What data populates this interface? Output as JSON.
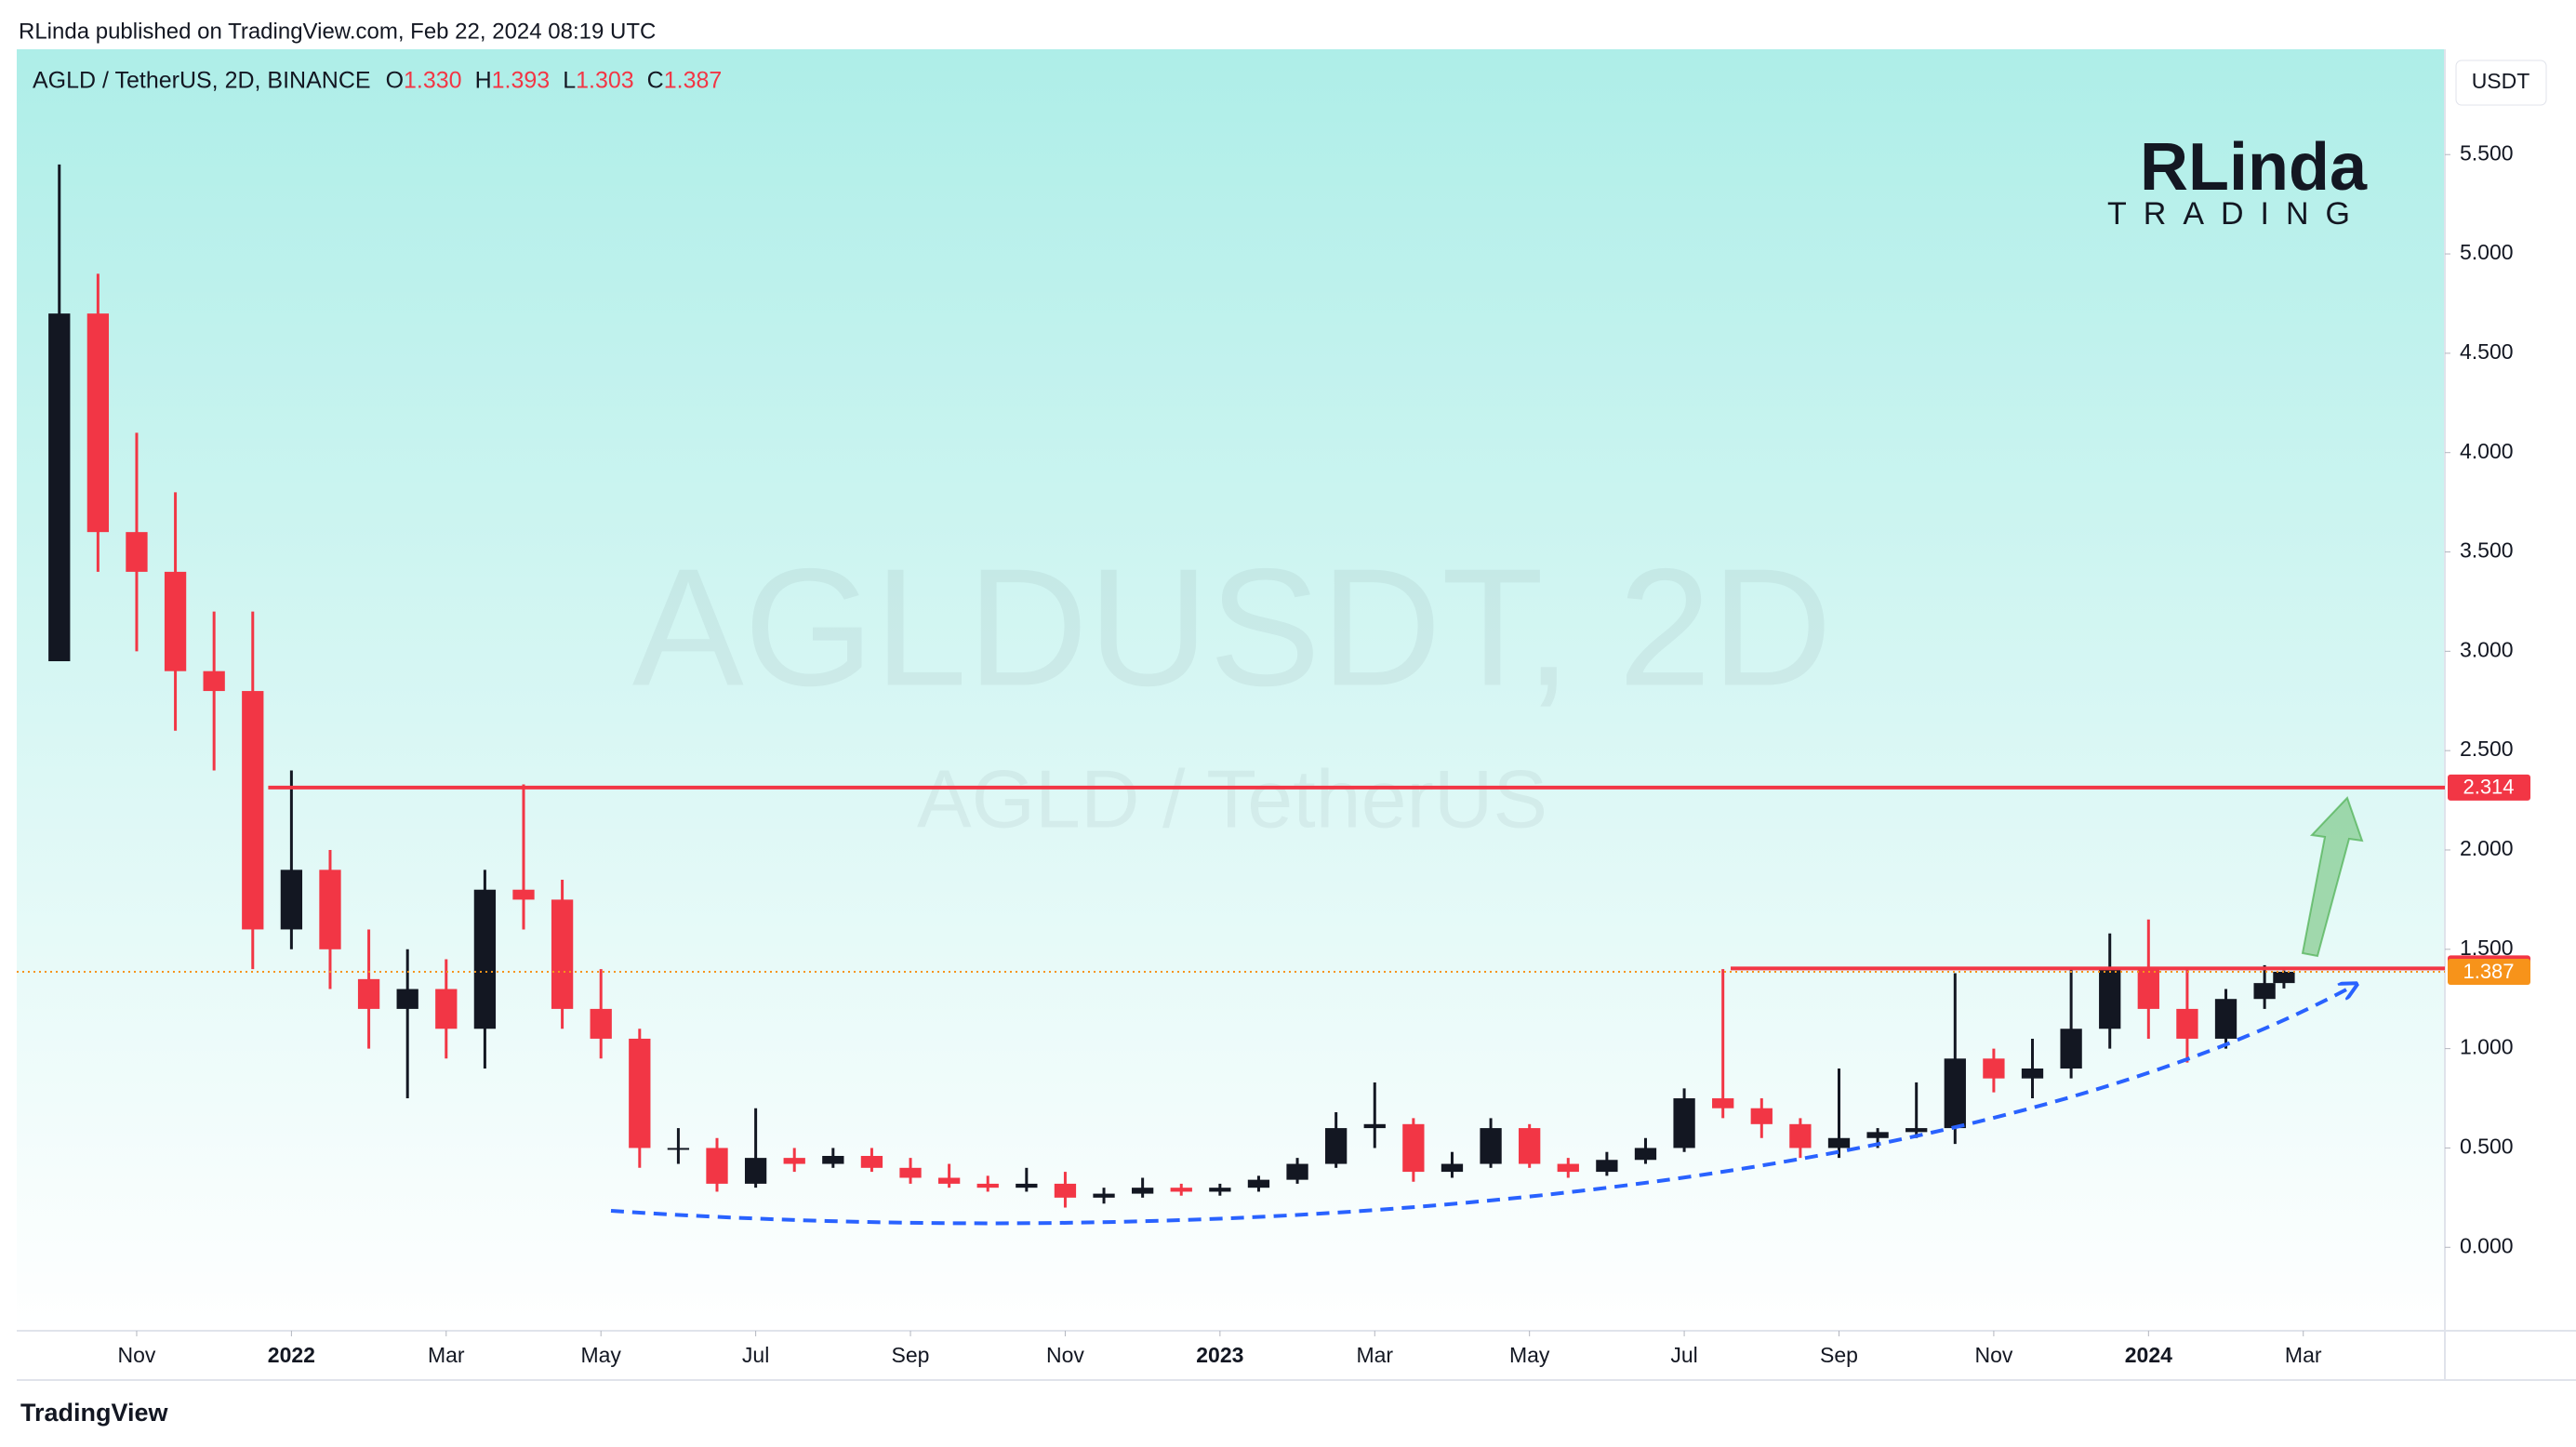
{
  "chart_data": {
    "type": "candlestick",
    "published": "RLinda published on TradingView.com, Feb 22, 2024 08:19 UTC",
    "symbol": "AGLD / TetherUS, 2D, BINANCE",
    "ohlc_legend": {
      "open": {
        "letter": "O",
        "value": 1.33,
        "label": "1.330"
      },
      "high": {
        "letter": "H",
        "value": 1.393,
        "label": "1.393"
      },
      "low": {
        "letter": "L",
        "value": 1.303,
        "label": "1.303"
      },
      "close": {
        "letter": "C",
        "value": 1.387,
        "label": "1.387"
      }
    },
    "currency_button": "USDT",
    "watermark": "AGLDUSDT, 2D",
    "watermark_sub": "AGLD / TetherUS",
    "logo": {
      "top": "RLinda",
      "bottom": "TRADING"
    },
    "footer": "TradingView",
    "up_color": "#131722",
    "down_color": "#f23645",
    "x": [
      0,
      0.5,
      1,
      1.5,
      2,
      2.5,
      3,
      3.5,
      4,
      4.5,
      5,
      5.5,
      6,
      6.5,
      7,
      7.5,
      8,
      8.5,
      9,
      9.5,
      10,
      10.5,
      11,
      11.5,
      12,
      12.5,
      13,
      13.5,
      14,
      14.5,
      15,
      15.5,
      16,
      16.5,
      17,
      17.5,
      18,
      18.5,
      19,
      19.5,
      20,
      20.5,
      21,
      21.5,
      22,
      22.5,
      23,
      23.5,
      24,
      24.5,
      25,
      25.5,
      26,
      26.5,
      27,
      27.5,
      28,
      28.5
    ],
    "open": [
      2.95,
      4.7,
      3.6,
      3.4,
      2.9,
      2.8,
      1.6,
      1.9,
      1.35,
      1.2,
      1.3,
      1.1,
      1.8,
      1.75,
      1.2,
      1.05,
      0.5,
      0.5,
      0.32,
      0.45,
      0.42,
      0.46,
      0.4,
      0.35,
      0.32,
      0.3,
      0.32,
      0.25,
      0.27,
      0.3,
      0.28,
      0.3,
      0.34,
      0.42,
      0.6,
      0.62,
      0.38,
      0.42,
      0.6,
      0.42,
      0.38,
      0.44,
      0.5,
      0.75,
      0.7,
      0.62,
      0.5,
      0.55,
      0.58,
      0.6,
      0.95,
      0.85,
      0.9,
      1.1,
      1.4,
      1.2,
      1.05,
      1.25
    ],
    "high": [
      5.45,
      4.9,
      4.1,
      3.8,
      3.2,
      3.2,
      2.4,
      2.0,
      1.6,
      1.5,
      1.45,
      1.9,
      2.33,
      1.85,
      1.4,
      1.1,
      0.6,
      0.55,
      0.7,
      0.5,
      0.5,
      0.5,
      0.45,
      0.42,
      0.36,
      0.4,
      0.38,
      0.3,
      0.35,
      0.32,
      0.32,
      0.36,
      0.45,
      0.68,
      0.83,
      0.65,
      0.48,
      0.65,
      0.62,
      0.45,
      0.48,
      0.55,
      0.8,
      1.4,
      0.75,
      0.65,
      0.9,
      0.6,
      0.83,
      1.38,
      1.0,
      1.05,
      1.4,
      1.58,
      1.65,
      1.4,
      1.3,
      1.42
    ],
    "low": [
      2.95,
      3.4,
      3.0,
      2.6,
      2.4,
      1.4,
      1.5,
      1.3,
      1.0,
      0.75,
      0.95,
      0.9,
      1.6,
      1.1,
      0.95,
      0.4,
      0.42,
      0.28,
      0.3,
      0.38,
      0.4,
      0.38,
      0.32,
      0.3,
      0.28,
      0.28,
      0.2,
      0.22,
      0.25,
      0.26,
      0.26,
      0.28,
      0.32,
      0.4,
      0.5,
      0.33,
      0.35,
      0.4,
      0.4,
      0.35,
      0.36,
      0.42,
      0.48,
      0.65,
      0.55,
      0.45,
      0.45,
      0.5,
      0.55,
      0.52,
      0.78,
      0.75,
      0.85,
      1.0,
      1.05,
      0.93,
      1.0,
      1.2
    ],
    "close": [
      4.7,
      3.6,
      3.4,
      2.9,
      2.8,
      1.6,
      1.9,
      1.5,
      1.2,
      1.3,
      1.1,
      1.8,
      1.75,
      1.2,
      1.05,
      0.5,
      0.5,
      0.32,
      0.45,
      0.42,
      0.46,
      0.4,
      0.35,
      0.32,
      0.3,
      0.32,
      0.25,
      0.27,
      0.3,
      0.28,
      0.3,
      0.34,
      0.42,
      0.6,
      0.62,
      0.38,
      0.42,
      0.6,
      0.42,
      0.38,
      0.44,
      0.5,
      0.75,
      0.7,
      0.62,
      0.5,
      0.55,
      0.58,
      0.6,
      0.95,
      0.85,
      0.9,
      1.1,
      1.4,
      1.2,
      1.05,
      1.25,
      1.33
    ],
    "last_x": 28.75,
    "levels": [
      {
        "value": 2.314,
        "from_x": 2.7,
        "color": "#f23645"
      },
      {
        "value": 1.404,
        "from_x": 21.6,
        "color": "#f23645"
      }
    ],
    "price_line_color": "#f7931a",
    "xlim": [
      -0.55,
      30.83
    ],
    "ylim": [
      -0.42,
      6.03
    ],
    "xticks": [
      {
        "value": 1,
        "label": "Nov"
      },
      {
        "value": 3,
        "label": "2022"
      },
      {
        "value": 5,
        "label": "Mar"
      },
      {
        "value": 7,
        "label": "May"
      },
      {
        "value": 9,
        "label": "Jul"
      },
      {
        "value": 11,
        "label": "Sep"
      },
      {
        "value": 13,
        "label": "Nov"
      },
      {
        "value": 15,
        "label": "2023"
      },
      {
        "value": 17,
        "label": "Mar"
      },
      {
        "value": 19,
        "label": "May"
      },
      {
        "value": 21,
        "label": "Jul"
      },
      {
        "value": 23,
        "label": "Sep"
      },
      {
        "value": 25,
        "label": "Nov"
      },
      {
        "value": 27,
        "label": "2024"
      },
      {
        "value": 29,
        "label": "Mar"
      }
    ],
    "yticks": [
      {
        "value": 0,
        "label": "0.000"
      },
      {
        "value": 0.5,
        "label": "0.500"
      },
      {
        "value": 1,
        "label": "1.000"
      },
      {
        "value": 1.5,
        "label": "1.500"
      },
      {
        "value": 2,
        "label": "2.000"
      },
      {
        "value": 2.5,
        "label": "2.500"
      },
      {
        "value": 3,
        "label": "3.000"
      },
      {
        "value": 3.5,
        "label": "3.500"
      },
      {
        "value": 4,
        "label": "4.000"
      },
      {
        "value": 4.5,
        "label": "4.500"
      },
      {
        "value": 5,
        "label": "5.000"
      },
      {
        "value": 5.5,
        "label": "5.500"
      }
    ],
    "grid": false
  }
}
